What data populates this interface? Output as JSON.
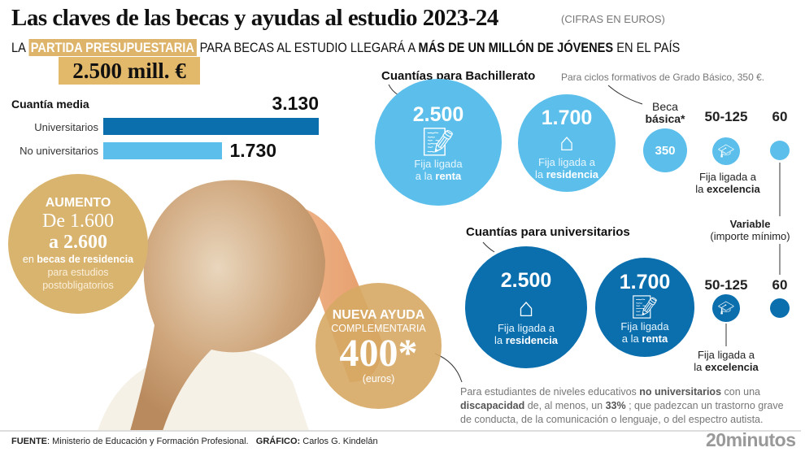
{
  "header": {
    "title": "Las claves de las becas y ayudas al estudio 2023-24",
    "units": "(CIFRAS EN EUROS)",
    "subtitle_pre": "LA",
    "subtitle_highlight": "PARTIDA PRESUPUESTARIA",
    "subtitle_mid": "PARA BECAS AL ESTUDIO LLEGARÁ A",
    "subtitle_bold": "MÁS DE UN MILLÓN DE JÓVENES",
    "subtitle_post": "EN EL PAÍS",
    "budget": "2.500 mill. €"
  },
  "chart_data": {
    "type": "bar",
    "title": "Cuantía media",
    "categories": [
      "Universitarios",
      "No universitarios"
    ],
    "values": [
      3130,
      1730
    ],
    "value_labels": [
      "3.130",
      "1.730"
    ],
    "colors": [
      "#0b6fae",
      "#5cbfeb"
    ]
  },
  "aumento": {
    "title": "AUMENTO",
    "from": "De 1.600",
    "to": "a 2.600",
    "pre": "en",
    "bold": "becas de residencia",
    "post": "para estudios postobligatorios"
  },
  "nueva": {
    "title": "NUEVA AYUDA",
    "sub": "COMPLEMENTARIA",
    "amount": "400*",
    "unit": "(euros)"
  },
  "bachillerato": {
    "heading": "Cuantías para Bachillerato",
    "note": "Para ciclos formativos de Grado Básico, 350 €.",
    "c1": {
      "amount": "2.500",
      "icon": "document-pen-icon",
      "l1": "Fija ligada",
      "l2": "a la",
      "b": "renta"
    },
    "c2": {
      "amount": "1.700",
      "icon": "house-icon",
      "l1": "Fija ligada a",
      "l2": "la",
      "b": "residencia"
    },
    "basica": {
      "l1": "Beca",
      "b": "básica*",
      "amount": "350"
    },
    "exc": {
      "amount": "50-125",
      "l1": "Fija ligada a",
      "l2": "la",
      "b": "excelencia"
    },
    "var": {
      "amount": "60",
      "b": "Variable",
      "l": "(importe mínimo)"
    }
  },
  "universitarios": {
    "heading": "Cuantías para universitarios",
    "c1": {
      "amount": "2.500",
      "icon": "house-icon",
      "l1": "Fija ligada a",
      "l2": "la",
      "b": "residencia"
    },
    "c2": {
      "amount": "1.700",
      "icon": "document-pen-icon",
      "l1": "Fija ligada",
      "l2": "a la",
      "b": "renta"
    },
    "exc": {
      "amount": "50-125",
      "l1": "Fija ligada a",
      "l2": "la",
      "b": "excelencia"
    },
    "var": {
      "amount": "60"
    }
  },
  "footnote": {
    "t1": "Para estudiantes de niveles educativos",
    "b1": "no universitarios",
    "t2": "con una",
    "b2": "discapacidad",
    "t3": "de, al menos, un",
    "b3": "33%",
    "t4": "; que padezcan un trastorno grave de conducta, de la comunicación o lenguaje, o del espectro autista."
  },
  "footer": {
    "source_label": "FUENTE",
    "source": ": Ministerio de Educación y Formación Profesional.",
    "credit_label": "GRÁFICO:",
    "credit": "Carlos G. Kindelán",
    "logo": "20minutos"
  },
  "colors": {
    "light_blue": "#5cbfeb",
    "dark_blue": "#0b6fae",
    "gold": "#deb46a"
  }
}
